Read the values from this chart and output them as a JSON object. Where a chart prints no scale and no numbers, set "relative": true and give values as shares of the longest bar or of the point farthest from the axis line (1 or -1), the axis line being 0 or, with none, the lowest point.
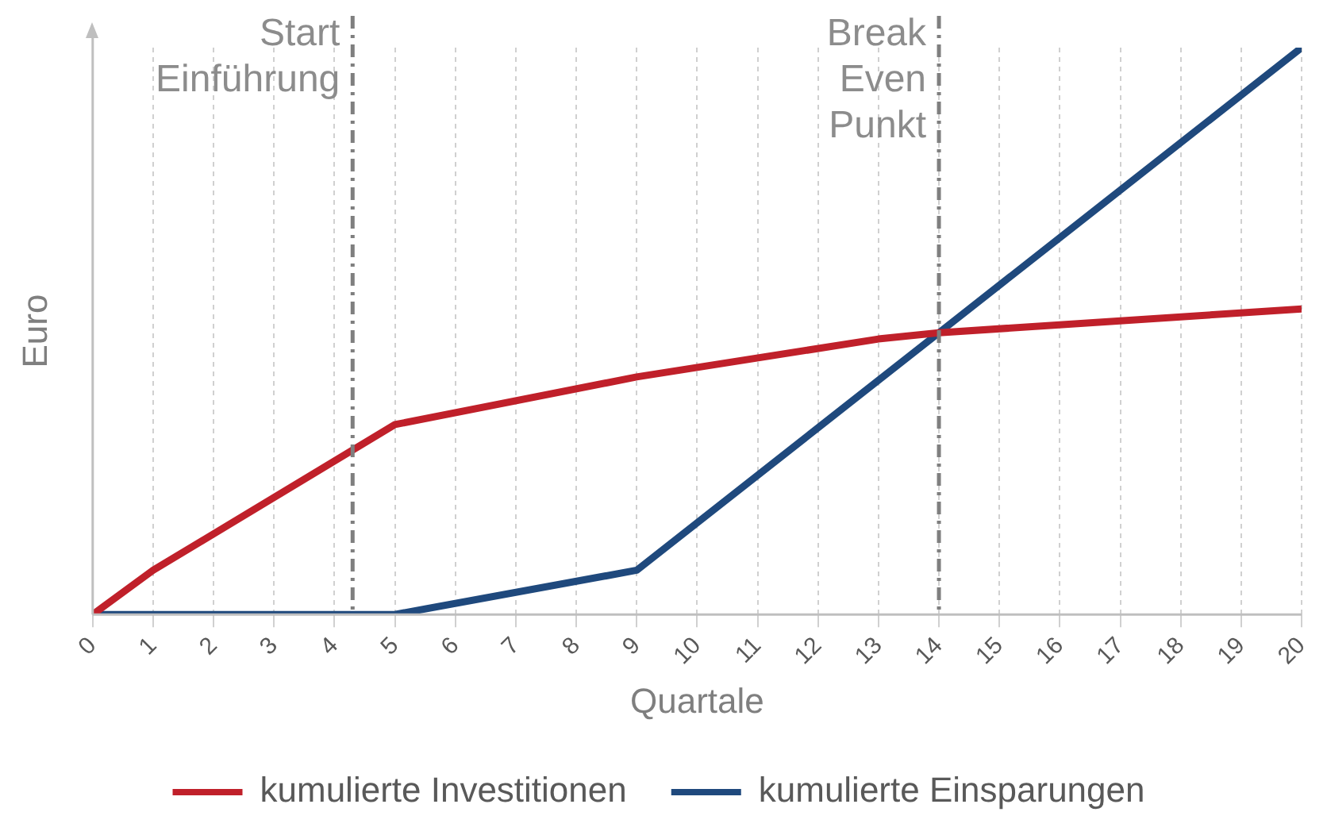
{
  "chart_data": {
    "type": "line",
    "relative": true,
    "xlabel": "Quartale",
    "ylabel": "Euro",
    "xlim": [
      0,
      20
    ],
    "xticks": [
      0,
      1,
      2,
      3,
      4,
      5,
      6,
      7,
      8,
      9,
      10,
      11,
      12,
      13,
      14,
      15,
      16,
      17,
      18,
      19,
      20
    ],
    "grid": "x",
    "legend": "bottom",
    "marker": "none",
    "line_style": "solid",
    "series": [
      {
        "name": "kumulierte Investitionen",
        "color": "#c0202a",
        "x": [
          0,
          1,
          5,
          9,
          13,
          14,
          20
        ],
        "values": [
          0,
          0.078,
          0.335,
          0.419,
          0.486,
          0.497,
          0.539
        ]
      },
      {
        "name": "kumulierte Einsparungen",
        "color": "#1f497d",
        "x": [
          0,
          5,
          9,
          14,
          20
        ],
        "values": [
          0,
          0,
          0.078,
          0.497,
          1
        ]
      }
    ],
    "ref_lines": [
      {
        "axis": "x",
        "value": 4.3,
        "label": "Start Einführung",
        "color": "#7f7f7f",
        "line_style": "dashdot"
      },
      {
        "axis": "x",
        "value": 14,
        "label": "Break Even Punkt",
        "color": "#7f7f7f",
        "line_style": "dashdot"
      }
    ]
  }
}
